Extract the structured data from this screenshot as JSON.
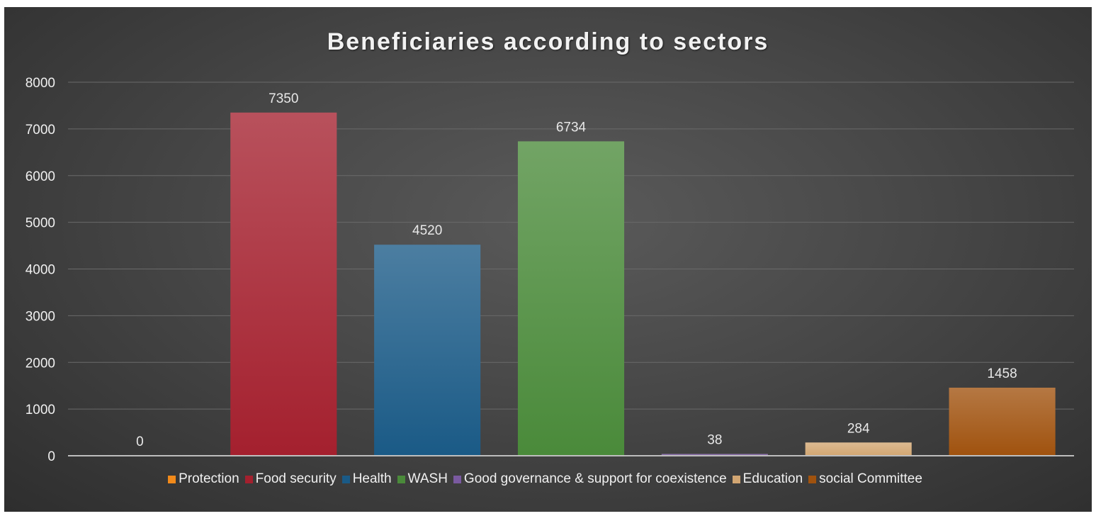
{
  "chart_data": {
    "type": "bar",
    "title": "Beneficiaries according to sectors",
    "xlabel": "",
    "ylabel": "",
    "ylim": [
      0,
      8000
    ],
    "yticks": [
      "0",
      "1000",
      "2000",
      "3000",
      "4000",
      "5000",
      "6000",
      "7000",
      "8000"
    ],
    "grid": true,
    "legend_position": "bottom",
    "series": [
      {
        "name": "Protection",
        "value": 0,
        "label": "0",
        "color": "#f28a1a"
      },
      {
        "name": "Food security",
        "value": 7350,
        "label": "7350",
        "color": "#a4202e"
      },
      {
        "name": "Health",
        "value": 4520,
        "label": "4520",
        "color": "#1a5a86"
      },
      {
        "name": "WASH",
        "value": 6734,
        "label": "6734",
        "color": "#4a8a3a"
      },
      {
        "name": "Good governance & support for coexistence",
        "value": 38,
        "label": "38",
        "color": "#7a5aa0"
      },
      {
        "name": "Education",
        "value": 284,
        "label": "284",
        "color": "#d2a672"
      },
      {
        "name": "social Committee",
        "value": 1458,
        "label": "1458",
        "color": "#a0520e"
      }
    ]
  }
}
